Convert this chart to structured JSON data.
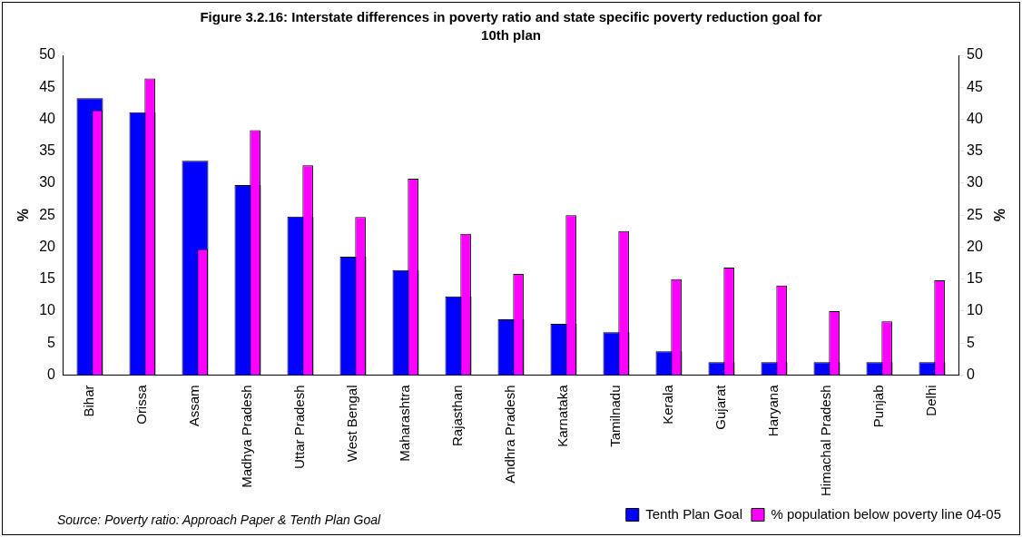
{
  "chart_data": {
    "type": "bar",
    "title": "Figure 3.2.16: Interstate differences in poverty ratio and state specific poverty reduction goal for 10th plan",
    "categories": [
      "Bihar",
      "Orissa",
      "Assam",
      "Madhya Pradesh",
      "Uttar Pradesh",
      "West Bengal",
      "Maharashtra",
      "Rajasthan",
      "Andhra Pradesh",
      "Karnataka",
      "Tamilnadu",
      "Kerala",
      "Gujarat",
      "Haryana",
      "Himachal Pradesh",
      "Punjab",
      "Delhi"
    ],
    "series": [
      {
        "name": "Tenth Plan Goal",
        "color": "#0000ff",
        "values": [
          43.3,
          41.1,
          33.5,
          29.7,
          24.8,
          18.5,
          16.4,
          12.3,
          8.7,
          8.0,
          6.7,
          3.7,
          2,
          2,
          2,
          2,
          2
        ]
      },
      {
        "name": "% population below poverty line 04-05",
        "color": "#ff00ff",
        "axis": "y2",
        "values": [
          41.4,
          46.4,
          19.7,
          38.3,
          32.8,
          24.7,
          30.7,
          22.1,
          15.8,
          25.0,
          22.5,
          15.0,
          16.8,
          14.0,
          10.0,
          8.4,
          14.8
        ]
      }
    ],
    "ylabel": "%",
    "y2label": "%",
    "ylim": [
      0,
      50
    ],
    "yticks": [
      0,
      5,
      10,
      15,
      20,
      25,
      30,
      35,
      40,
      45,
      50
    ],
    "y2lim": [
      0,
      50
    ],
    "y2ticks": [
      0,
      5,
      10,
      15,
      20,
      25,
      30,
      35,
      40,
      45,
      50
    ],
    "grid": false,
    "legend": "bottom right",
    "annotations": [
      "Source: Poverty ratio: Approach Paper & Tenth Plan Goal"
    ]
  }
}
